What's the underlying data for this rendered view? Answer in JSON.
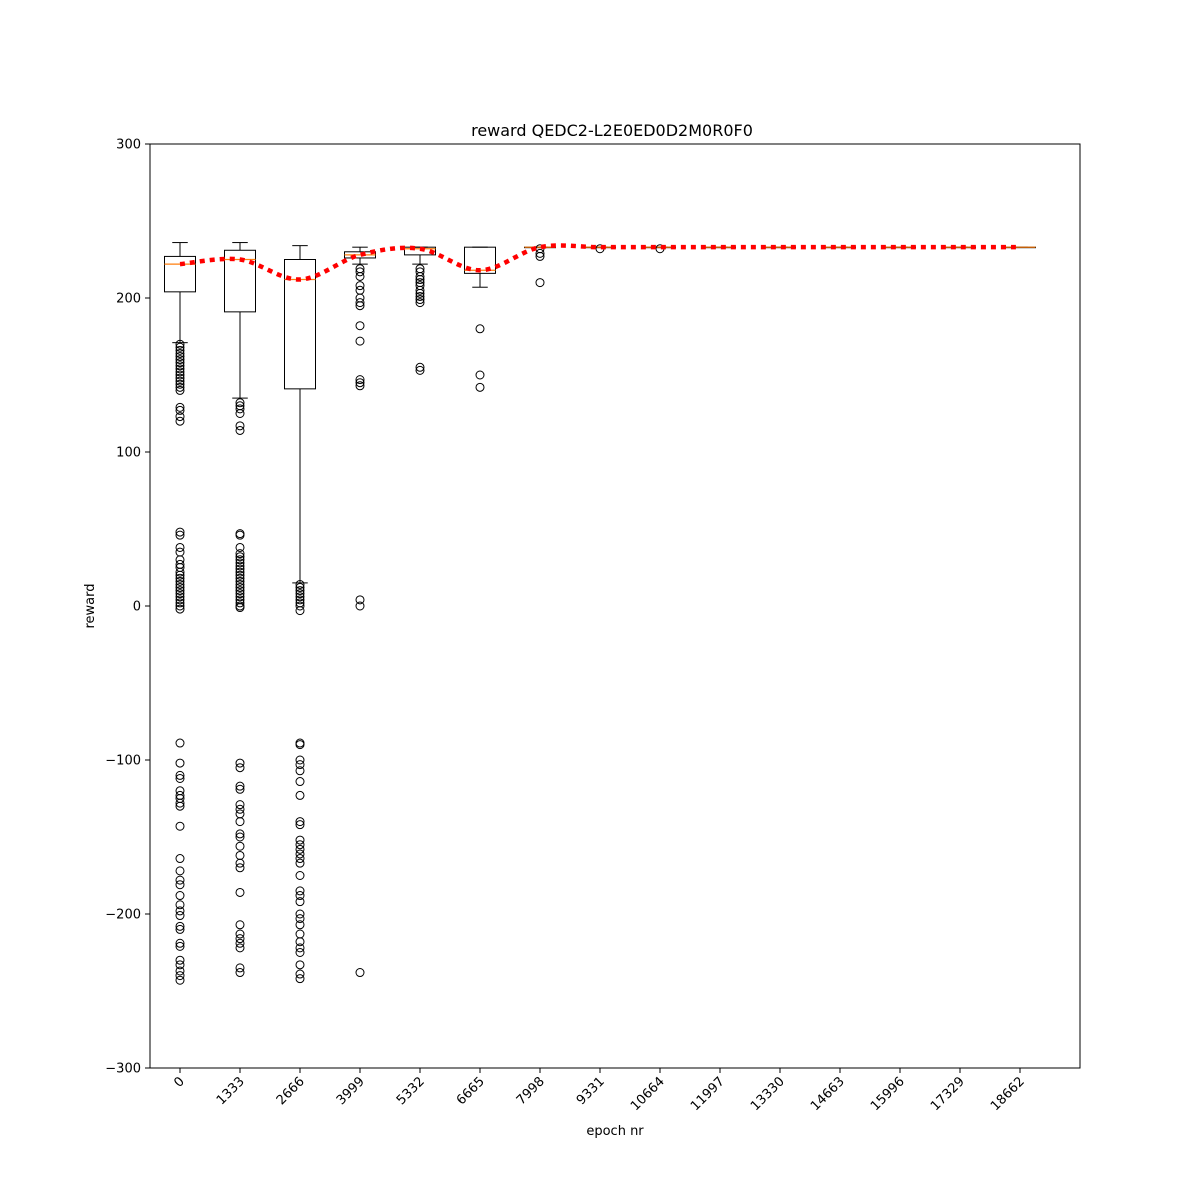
{
  "chart_data": {
    "type": "box",
    "title": "reward QEDC2-L2E0ED0D2M0R0F0",
    "xlabel": "epoch nr",
    "ylabel": "reward",
    "ylim": [
      -300,
      300
    ],
    "yticks": [
      -300,
      -200,
      -100,
      0,
      100,
      200,
      300
    ],
    "yticklabels": [
      "−300",
      "−200",
      "−100",
      "0",
      "100",
      "200",
      "300"
    ],
    "categories": [
      "0",
      "1333",
      "2666",
      "3999",
      "5332",
      "6665",
      "7998",
      "9331",
      "10664",
      "11997",
      "13330",
      "14663",
      "15996",
      "17329",
      "18662"
    ],
    "boxes": [
      {
        "q1": 204,
        "median": 222,
        "q3": 227,
        "whisker_low": 171,
        "whisker_high": 236,
        "outliers": [
          170,
          168,
          166,
          164,
          162,
          160,
          158,
          156,
          154,
          152,
          150,
          148,
          146,
          144,
          142,
          140,
          129,
          127,
          123,
          120,
          48,
          46,
          38,
          35,
          30,
          27,
          25,
          22,
          20,
          18,
          16,
          14,
          12,
          10,
          8,
          6,
          4,
          2,
          0,
          -2,
          -89,
          -102,
          -110,
          -112,
          -120,
          -123,
          -125,
          -128,
          -130,
          -143,
          -164,
          -172,
          -178,
          -181,
          -188,
          -194,
          -198,
          -201,
          -208,
          -210,
          -219,
          -221,
          -230,
          -233,
          -237,
          -240,
          -243
        ]
      },
      {
        "q1": 191,
        "median": 225,
        "q3": 231,
        "whisker_low": 135,
        "whisker_high": 236,
        "outliers": [
          132,
          130,
          128,
          125,
          117,
          114,
          47,
          46,
          38,
          34,
          32,
          30,
          28,
          26,
          24,
          22,
          20,
          18,
          16,
          14,
          12,
          10,
          8,
          6,
          4,
          2,
          0,
          -1,
          -102,
          -105,
          -117,
          -119,
          -129,
          -132,
          -135,
          -140,
          -148,
          -150,
          -156,
          -162,
          -167,
          -170,
          -186,
          -207,
          -213,
          -216,
          -219,
          -222,
          -235,
          -238
        ]
      },
      {
        "q1": 141,
        "median": 212,
        "q3": 225,
        "whisker_low": 15,
        "whisker_high": 234,
        "outliers": [
          14,
          12,
          10,
          8,
          6,
          4,
          2,
          0,
          -3,
          -89,
          -90,
          -100,
          -103,
          -107,
          -114,
          -123,
          -140,
          -142,
          -152,
          -155,
          -158,
          -161,
          -164,
          -167,
          -175,
          -185,
          -188,
          -192,
          -200,
          -203,
          -207,
          -213,
          -218,
          -222,
          -225,
          -233,
          -239,
          -242
        ]
      },
      {
        "q1": 226,
        "median": 228,
        "q3": 230,
        "whisker_low": 222,
        "whisker_high": 233,
        "outliers": [
          219,
          217,
          214,
          208,
          205,
          200,
          197,
          195,
          182,
          172,
          147,
          145,
          143,
          4,
          0,
          -238
        ]
      },
      {
        "q1": 228,
        "median": 232,
        "q3": 233,
        "whisker_low": 222,
        "whisker_high": 233,
        "outliers": [
          219,
          217,
          214,
          212,
          210,
          208,
          205,
          203,
          201,
          199,
          197,
          155,
          153
        ]
      },
      {
        "q1": 216,
        "median": 218,
        "q3": 233,
        "whisker_low": 207,
        "whisker_high": 233,
        "outliers": [
          180,
          150,
          142
        ]
      },
      {
        "q1": 233,
        "median": 233,
        "q3": 233,
        "whisker_low": 233,
        "whisker_high": 233,
        "outliers": [
          232,
          229,
          227,
          210
        ]
      },
      {
        "q1": 233,
        "median": 233,
        "q3": 233,
        "whisker_low": 233,
        "whisker_high": 233,
        "outliers": [
          232
        ]
      },
      {
        "q1": 233,
        "median": 233,
        "q3": 233,
        "whisker_low": 233,
        "whisker_high": 233,
        "outliers": [
          232
        ]
      },
      {
        "q1": 233,
        "median": 233,
        "q3": 233,
        "whisker_low": 233,
        "whisker_high": 233,
        "outliers": []
      },
      {
        "q1": 233,
        "median": 233,
        "q3": 233,
        "whisker_low": 233,
        "whisker_high": 233,
        "outliers": []
      },
      {
        "q1": 233,
        "median": 233,
        "q3": 233,
        "whisker_low": 233,
        "whisker_high": 233,
        "outliers": []
      },
      {
        "q1": 233,
        "median": 233,
        "q3": 233,
        "whisker_low": 233,
        "whisker_high": 233,
        "outliers": []
      },
      {
        "q1": 233,
        "median": 233,
        "q3": 233,
        "whisker_low": 233,
        "whisker_high": 233,
        "outliers": []
      },
      {
        "q1": 233,
        "median": 233,
        "q3": 233,
        "whisker_low": 233,
        "whisker_high": 233,
        "outliers": []
      }
    ],
    "mean_line": {
      "values": [
        222,
        225,
        212,
        228,
        232,
        218,
        233,
        233,
        233,
        233,
        233,
        233,
        233,
        233,
        233
      ],
      "color": "#ff0000",
      "style": "dotted"
    },
    "box_color": "#000000",
    "median_color": "#ff7f0e",
    "grid": false,
    "legend": "none"
  }
}
